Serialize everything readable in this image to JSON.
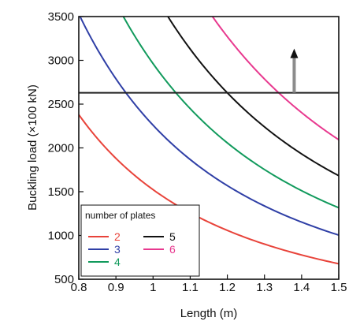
{
  "chart_data": {
    "type": "line",
    "xlabel": "Length (m)",
    "ylabel": "Buckling load (×100 kN)",
    "xlim": [
      0.8,
      1.5
    ],
    "ylim": [
      500,
      3500
    ],
    "x_ticks": [
      "0.8",
      "0.9",
      "1",
      "1.1",
      "1.2",
      "1.3",
      "1.4",
      "1.5"
    ],
    "y_ticks": [
      "500",
      "1000",
      "1500",
      "2000",
      "2500",
      "3000",
      "3500"
    ],
    "grid": false,
    "legend": {
      "title": "number of plates",
      "placement": "bottom-left",
      "entries": [
        {
          "label": "2",
          "color": "#e8433a"
        },
        {
          "label": "3",
          "color": "#2f3fa6"
        },
        {
          "label": "4",
          "color": "#119a5c"
        },
        {
          "label": "5",
          "color": "#111111"
        },
        {
          "label": "6",
          "color": "#e8398f"
        }
      ]
    },
    "series": [
      {
        "name": "2",
        "color": "#e8433a",
        "x": [
          0.8,
          1.5
        ],
        "y": [
          2380,
          677
        ]
      },
      {
        "name": "3",
        "color": "#2f3fa6",
        "x": [
          0.8,
          1.5
        ],
        "y": [
          3530,
          1004
        ]
      },
      {
        "name": "4",
        "color": "#119a5c",
        "x": [
          0.92,
          1.5
        ],
        "y": [
          3500,
          1340
        ]
      },
      {
        "name": "5",
        "color": "#111111",
        "x": [
          1.04,
          1.5
        ],
        "y": [
          3500,
          1680
        ]
      },
      {
        "name": "6",
        "color": "#e8398f",
        "x": [
          1.16,
          1.5
        ],
        "y": [
          3500,
          2030
        ]
      }
    ],
    "reference_line": {
      "y": 2630,
      "color": "#222222"
    },
    "arrow": {
      "x": 1.38,
      "y_from": 2630,
      "y_to": 3080,
      "color": "#8c8c8c"
    }
  }
}
